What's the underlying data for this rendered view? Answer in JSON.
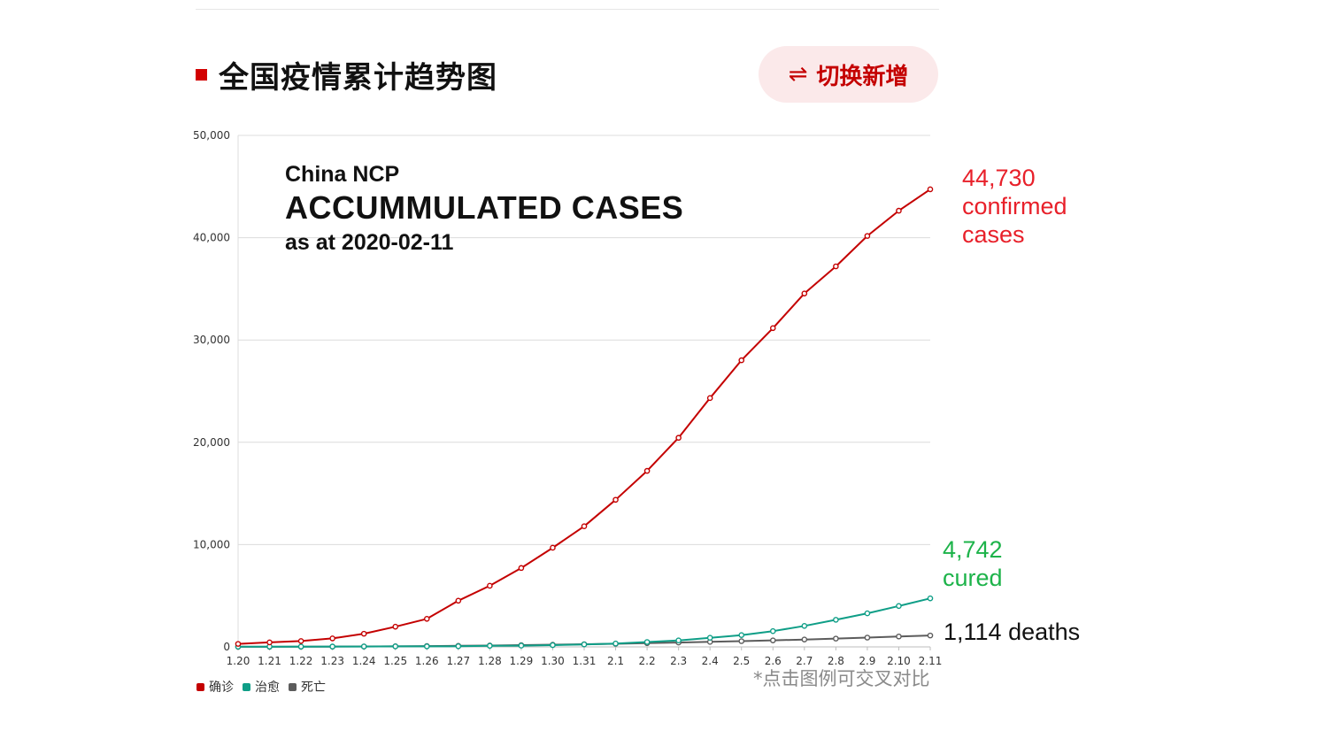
{
  "header": {
    "title": "全国疫情累计趋势图",
    "toggle_label": "切换新增",
    "toggle_icon": "swap-arrows-icon"
  },
  "overlay": {
    "line1": "China NCP",
    "line2": "ACCUMMULATED CASES",
    "line3": "as at 2020-02-11"
  },
  "callouts": {
    "confirmed": {
      "value": "44,730",
      "l1": "confirmed",
      "l2": "cases",
      "color": "#e8202a"
    },
    "cured": {
      "value": "4,742",
      "l1": "cured",
      "color": "#1db34a"
    },
    "deaths": {
      "value": "1,114 deaths",
      "color": "#111111"
    }
  },
  "note": "*点击图例可交叉对比",
  "legend": [
    {
      "label": "确诊",
      "color": "#c40000"
    },
    {
      "label": "治愈",
      "color": "#0f9e87"
    },
    {
      "label": "死亡",
      "color": "#5c5c5c"
    }
  ],
  "chart_data": {
    "type": "line",
    "x": [
      "1.20",
      "1.21",
      "1.22",
      "1.23",
      "1.24",
      "1.25",
      "1.26",
      "1.27",
      "1.28",
      "1.29",
      "1.30",
      "1.31",
      "2.1",
      "2.2",
      "2.3",
      "2.4",
      "2.5",
      "2.6",
      "2.7",
      "2.8",
      "2.9",
      "2.10",
      "2.11"
    ],
    "ylim": [
      0,
      50000
    ],
    "yticks": [
      "0",
      "10,000",
      "20,000",
      "30,000",
      "40,000",
      "50,000"
    ],
    "ytick_values": [
      0,
      10000,
      20000,
      30000,
      40000,
      50000
    ],
    "grid": true,
    "legend_position": "bottom-left",
    "series": [
      {
        "name": "确诊",
        "color": "#c40000",
        "values": [
          291,
          440,
          571,
          830,
          1287,
          1975,
          2744,
          4515,
          5974,
          7711,
          9692,
          11791,
          14380,
          17205,
          20438,
          24324,
          28018,
          31161,
          34546,
          37198,
          40171,
          42638,
          44730
        ]
      },
      {
        "name": "治愈",
        "color": "#0f9e87",
        "values": [
          25,
          28,
          28,
          34,
          38,
          49,
          51,
          60,
          103,
          124,
          171,
          243,
          328,
          475,
          632,
          892,
          1153,
          1540,
          2050,
          2649,
          3281,
          3996,
          4742
        ]
      },
      {
        "name": "死亡",
        "color": "#5c5c5c",
        "values": [
          6,
          9,
          17,
          25,
          41,
          56,
          80,
          106,
          132,
          170,
          213,
          259,
          304,
          361,
          425,
          490,
          563,
          636,
          722,
          811,
          908,
          1016,
          1114
        ]
      }
    ]
  }
}
